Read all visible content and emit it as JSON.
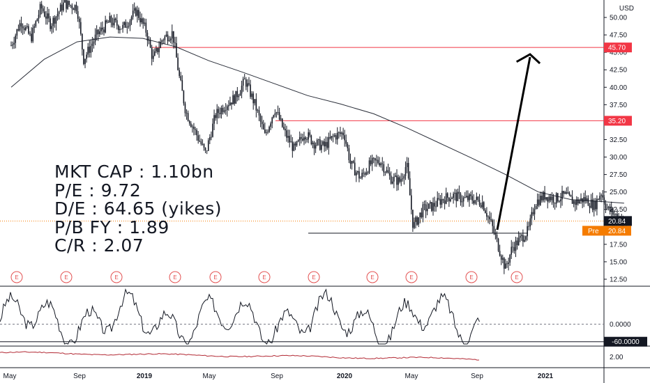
{
  "currency": "USD",
  "stats": {
    "mkt_cap": "MKT CAP : 1.10bn",
    "pe": "P/E : 9.72",
    "de": "D/E : 64.65 (yikes)",
    "pb": "P/B FY : 1.89",
    "cr": "C/R : 2.07"
  },
  "colors": {
    "candle": "#131722",
    "ma": "#2a2e39",
    "level": "#f23645",
    "price_line": "#f57c00",
    "pre_badge": "#f57c00",
    "earnings": "#e35151",
    "osc2": "#b22833",
    "grid_border": "#131722"
  },
  "chart_data": [
    {
      "type": "candlestick",
      "x_ticks": [
        "May",
        "Sep",
        "2019",
        "May",
        "Sep",
        "2020",
        "May",
        "Sep",
        "2021"
      ],
      "y_ticks": [
        "50.00",
        "47.50",
        "45.00",
        "42.50",
        "40.00",
        "37.50",
        "35.00",
        "32.50",
        "30.00",
        "27.50",
        "25.00",
        "22.50",
        "20.00",
        "17.50",
        "15.00",
        "12.50"
      ],
      "ylim": [
        11.5,
        52.5
      ],
      "levels": [
        {
          "value": 45.7,
          "label": "45.70"
        },
        {
          "value": 35.2,
          "label": "35.20"
        }
      ],
      "support_line": {
        "value": 19.1
      },
      "last_price": {
        "value": 20.84,
        "label": "20.84"
      },
      "pre_market": {
        "label": "Pre",
        "value": "20.84"
      },
      "earnings_marker": "E",
      "earnings_count": 10,
      "moving_average_points": [
        [
          0,
          40.0
        ],
        [
          0.5,
          44.0
        ],
        [
          1,
          46.5
        ],
        [
          1.5,
          47.2
        ],
        [
          2,
          47.0
        ],
        [
          2.5,
          45.8
        ],
        [
          3,
          43.8
        ],
        [
          3.5,
          42.2
        ],
        [
          4,
          40.5
        ],
        [
          4.5,
          38.8
        ],
        [
          5,
          37.6
        ],
        [
          5.5,
          36.2
        ],
        [
          6,
          34.2
        ],
        [
          6.5,
          32.0
        ],
        [
          7,
          29.8
        ],
        [
          7.5,
          27.5
        ],
        [
          8,
          25.0
        ],
        [
          8.5,
          23.9
        ],
        [
          9,
          23.6
        ],
        [
          9.3,
          23.4
        ]
      ],
      "price_points": [
        [
          0,
          46.0
        ],
        [
          0.15,
          49.5
        ],
        [
          0.3,
          47.0
        ],
        [
          0.45,
          51.5
        ],
        [
          0.6,
          49.0
        ],
        [
          0.8,
          52.0
        ],
        [
          1,
          51.5
        ],
        [
          1.1,
          44.0
        ],
        [
          1.3,
          47.5
        ],
        [
          1.5,
          49.5
        ],
        [
          1.7,
          48.5
        ],
        [
          1.9,
          51.0
        ],
        [
          2.05,
          48.0
        ],
        [
          2.15,
          44.0
        ],
        [
          2.3,
          47.0
        ],
        [
          2.45,
          47.8
        ],
        [
          2.55,
          41.5
        ],
        [
          2.65,
          36.5
        ],
        [
          2.8,
          33.5
        ],
        [
          2.95,
          30.5
        ],
        [
          3.1,
          36.0
        ],
        [
          3.25,
          37.5
        ],
        [
          3.4,
          38.5
        ],
        [
          3.55,
          41.0
        ],
        [
          3.7,
          37.5
        ],
        [
          3.85,
          33.0
        ],
        [
          4.0,
          37.0
        ],
        [
          4.15,
          33.5
        ],
        [
          4.3,
          31.0
        ],
        [
          4.45,
          33.5
        ],
        [
          4.6,
          32.0
        ],
        [
          4.75,
          31.5
        ],
        [
          4.9,
          33.0
        ],
        [
          5.05,
          33.5
        ],
        [
          5.15,
          29.0
        ],
        [
          5.3,
          27.0
        ],
        [
          5.45,
          29.0
        ],
        [
          5.6,
          29.5
        ],
        [
          5.75,
          27.0
        ],
        [
          5.9,
          26.5
        ],
        [
          6.0,
          29.0
        ],
        [
          6.1,
          20.0
        ],
        [
          6.25,
          22.5
        ],
        [
          6.4,
          23.0
        ],
        [
          6.55,
          24.0
        ],
        [
          6.7,
          24.5
        ],
        [
          6.85,
          24.0
        ],
        [
          7.0,
          24.0
        ],
        [
          7.15,
          23.5
        ],
        [
          7.3,
          20.0
        ],
        [
          7.4,
          17.0
        ],
        [
          7.5,
          14.0
        ],
        [
          7.6,
          17.0
        ],
        [
          7.75,
          18.5
        ],
        [
          7.85,
          19.5
        ],
        [
          7.95,
          23.5
        ],
        [
          8.1,
          24.5
        ],
        [
          8.25,
          24.0
        ],
        [
          8.4,
          24.5
        ],
        [
          8.55,
          23.5
        ],
        [
          8.7,
          24.0
        ],
        [
          8.85,
          23.0
        ],
        [
          8.95,
          25.0
        ],
        [
          9.05,
          22.5
        ],
        [
          9.2,
          21.5
        ],
        [
          9.3,
          20.84
        ]
      ]
    },
    {
      "type": "line",
      "name": "",
      "y_ticks": [
        "0.0000"
      ],
      "ylim": [
        -75,
        130
      ],
      "reference_line": {
        "value": -60.0,
        "label": "-60.0000"
      },
      "zero_dashed": true
    },
    {
      "type": "line",
      "y_ticks": [
        "2.00"
      ],
      "ylim": [
        0.5,
        3.5
      ],
      "values_start": 2.6,
      "values_end": 1.7
    }
  ]
}
